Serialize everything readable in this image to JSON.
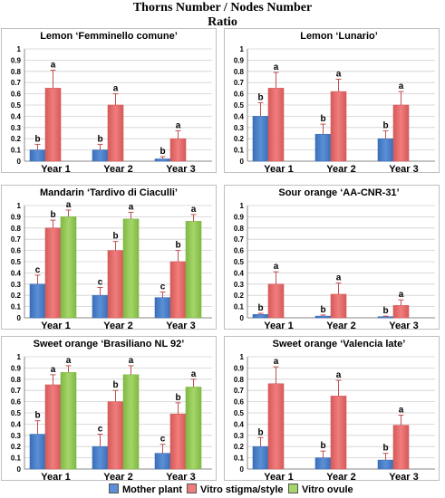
{
  "title": {
    "line1": "Thorns Number / Nodes Number",
    "line2": "Ratio"
  },
  "legend": [
    {
      "label": "Mother plant",
      "color": "#5b8fd6"
    },
    {
      "label": "Vitro stigma/style",
      "color": "#f07d7d"
    },
    {
      "label": "Vitro ovule",
      "color": "#a6d66a"
    }
  ],
  "chart_data": [
    {
      "type": "bar",
      "title": "Lemon ‘Femminello comune’",
      "categories": [
        "Year 1",
        "Year 2",
        "Year 3"
      ],
      "ylim": [
        0,
        1
      ],
      "yticks": [
        "0",
        "0.1",
        "0.2",
        "0.3",
        "0.4",
        "0.5",
        "0.6",
        "0.7",
        "0.8",
        "0.9",
        "1"
      ],
      "grid": true,
      "series": [
        {
          "name": "Mother plant",
          "values": [
            0.1,
            0.1,
            0.02
          ],
          "errors": [
            0.05,
            0.05,
            0.02
          ],
          "letters": [
            "b",
            "b",
            "b"
          ]
        },
        {
          "name": "Vitro stigma/style",
          "values": [
            0.65,
            0.5,
            0.2
          ],
          "errors": [
            0.16,
            0.1,
            0.07
          ],
          "letters": [
            "a",
            "a",
            "a"
          ]
        }
      ]
    },
    {
      "type": "bar",
      "title": "Lemon ‘Lunario’",
      "categories": [
        "Year 1",
        "Year 2",
        "Year 3"
      ],
      "ylim": [
        0,
        1
      ],
      "yticks": [
        "0",
        "0.1",
        "0.2",
        "0.3",
        "0.4",
        "0.5",
        "0.6",
        "0.7",
        "0.8",
        "0.9",
        "1"
      ],
      "grid": true,
      "series": [
        {
          "name": "Mother plant",
          "values": [
            0.4,
            0.24,
            0.2
          ],
          "errors": [
            0.12,
            0.09,
            0.07
          ],
          "letters": [
            "b",
            "b",
            "b"
          ]
        },
        {
          "name": "Vitro stigma/style",
          "values": [
            0.65,
            0.62,
            0.5
          ],
          "errors": [
            0.14,
            0.11,
            0.12
          ],
          "letters": [
            "a",
            "a",
            "a"
          ]
        }
      ]
    },
    {
      "type": "bar",
      "title": "Mandarin ‘Tardivo di Ciaculli’",
      "categories": [
        "Year 1",
        "Year 2",
        "Year 3"
      ],
      "ylim": [
        0,
        1
      ],
      "yticks": [
        "0",
        "0.1",
        "0.2",
        "0.3",
        "0.4",
        "0.5",
        "0.6",
        "0.7",
        "0.8",
        "0.9",
        "1"
      ],
      "grid": true,
      "series": [
        {
          "name": "Mother plant",
          "values": [
            0.3,
            0.2,
            0.18
          ],
          "errors": [
            0.08,
            0.07,
            0.05
          ],
          "letters": [
            "c",
            "c",
            "c"
          ]
        },
        {
          "name": "Vitro stigma/style",
          "values": [
            0.8,
            0.6,
            0.5
          ],
          "errors": [
            0.07,
            0.08,
            0.1
          ],
          "letters": [
            "b",
            "b",
            "b"
          ]
        },
        {
          "name": "Vitro ovule",
          "values": [
            0.9,
            0.88,
            0.86
          ],
          "errors": [
            0.06,
            0.06,
            0.06
          ],
          "letters": [
            "a",
            "a",
            "a"
          ]
        }
      ]
    },
    {
      "type": "bar",
      "title": "Sour orange ‘AA-CNR-31’",
      "categories": [
        "Year 1",
        "Year 2",
        "Year 3"
      ],
      "ylim": [
        0,
        1
      ],
      "yticks": [
        "0",
        "0.1",
        "0.2",
        "0.3",
        "0.4",
        "0.5",
        "0.6",
        "0.7",
        "0.8",
        "0.9",
        "1"
      ],
      "grid": true,
      "series": [
        {
          "name": "Mother plant",
          "values": [
            0.03,
            0.015,
            0.01
          ],
          "errors": [
            0.01,
            0.01,
            0.005
          ],
          "letters": [
            "b",
            "b",
            "b"
          ]
        },
        {
          "name": "Vitro stigma/style",
          "values": [
            0.3,
            0.21,
            0.11
          ],
          "errors": [
            0.11,
            0.1,
            0.05
          ],
          "letters": [
            "a",
            "a",
            "a"
          ]
        }
      ]
    },
    {
      "type": "bar",
      "title": "Sweet orange ‘Brasiliano NL 92’",
      "categories": [
        "Year 1",
        "Year 2",
        "Year 3"
      ],
      "ylim": [
        0,
        1
      ],
      "yticks": [
        "0",
        "0.1",
        "0.2",
        "0.3",
        "0.4",
        "0.5",
        "0.6",
        "0.7",
        "0.8",
        "0.9",
        "1"
      ],
      "grid": true,
      "series": [
        {
          "name": "Mother plant",
          "values": [
            0.31,
            0.2,
            0.14
          ],
          "errors": [
            0.12,
            0.11,
            0.08
          ],
          "letters": [
            "b",
            "c",
            "c"
          ]
        },
        {
          "name": "Vitro stigma/style",
          "values": [
            0.75,
            0.6,
            0.49
          ],
          "errors": [
            0.09,
            0.1,
            0.1
          ],
          "letters": [
            "a",
            "b",
            "b"
          ]
        },
        {
          "name": "Vitro ovule",
          "values": [
            0.86,
            0.84,
            0.73
          ],
          "errors": [
            0.06,
            0.08,
            0.07
          ],
          "letters": [
            "a",
            "a",
            "a"
          ]
        }
      ]
    },
    {
      "type": "bar",
      "title": "Sweet orange ‘Valencia late’",
      "categories": [
        "Year 1",
        "Year 2",
        "Year 3"
      ],
      "ylim": [
        0,
        1
      ],
      "yticks": [
        "0",
        "0.1",
        "0.2",
        "0.3",
        "0.4",
        "0.5",
        "0.6",
        "0.7",
        "0.8",
        "0.9",
        "1"
      ],
      "grid": true,
      "series": [
        {
          "name": "Mother plant",
          "values": [
            0.2,
            0.1,
            0.08
          ],
          "errors": [
            0.08,
            0.06,
            0.06
          ],
          "letters": [
            "b",
            "b",
            "b"
          ]
        },
        {
          "name": "Vitro stigma/style",
          "values": [
            0.76,
            0.65,
            0.39
          ],
          "errors": [
            0.15,
            0.14,
            0.09
          ],
          "letters": [
            "a",
            "a",
            "a"
          ]
        }
      ]
    }
  ]
}
